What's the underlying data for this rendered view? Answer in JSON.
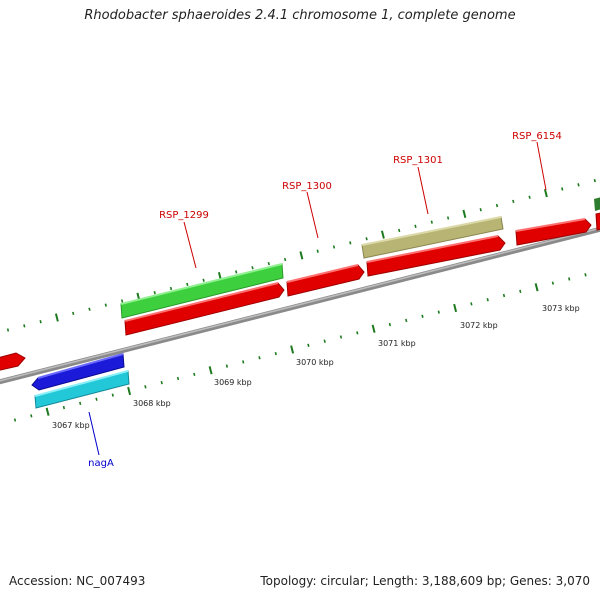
{
  "title": "Rhodobacter sphaeroides 2.4.1 chromosome 1, complete genome",
  "footer": {
    "accession": "Accession: NC_007493",
    "stats": "Topology: circular; Length: 3,188,609 bp; Genes: 3,070"
  },
  "colors": {
    "backbone": "#8a8a8a",
    "tick": "#1e7a1e",
    "forward_cds": "#e00000",
    "reverse_cds": "#1a1ad8",
    "reverse_cds_2": "#22c8d8",
    "rna_gene": "#3ecf3e",
    "misc_feature": "#b8b474",
    "label_forward": "#cc0000",
    "label_reverse": "#0000cc"
  },
  "scale": {
    "unit": "kbp",
    "labels": [
      "3067 kbp",
      "3068 kbp",
      "3069 kbp",
      "3070 kbp",
      "3071 kbp",
      "3072 kbp",
      "3073 kbp"
    ]
  },
  "genes": [
    {
      "name": "RSP_1299",
      "strand": "forward",
      "type": "CDS"
    },
    {
      "name": "RSP_1300",
      "strand": "forward",
      "type": "CDS"
    },
    {
      "name": "RSP_1301",
      "strand": "forward",
      "type": "CDS"
    },
    {
      "name": "RSP_6154",
      "strand": "forward",
      "type": "CDS"
    },
    {
      "name": "nagA",
      "strand": "reverse",
      "type": "CDS"
    }
  ]
}
